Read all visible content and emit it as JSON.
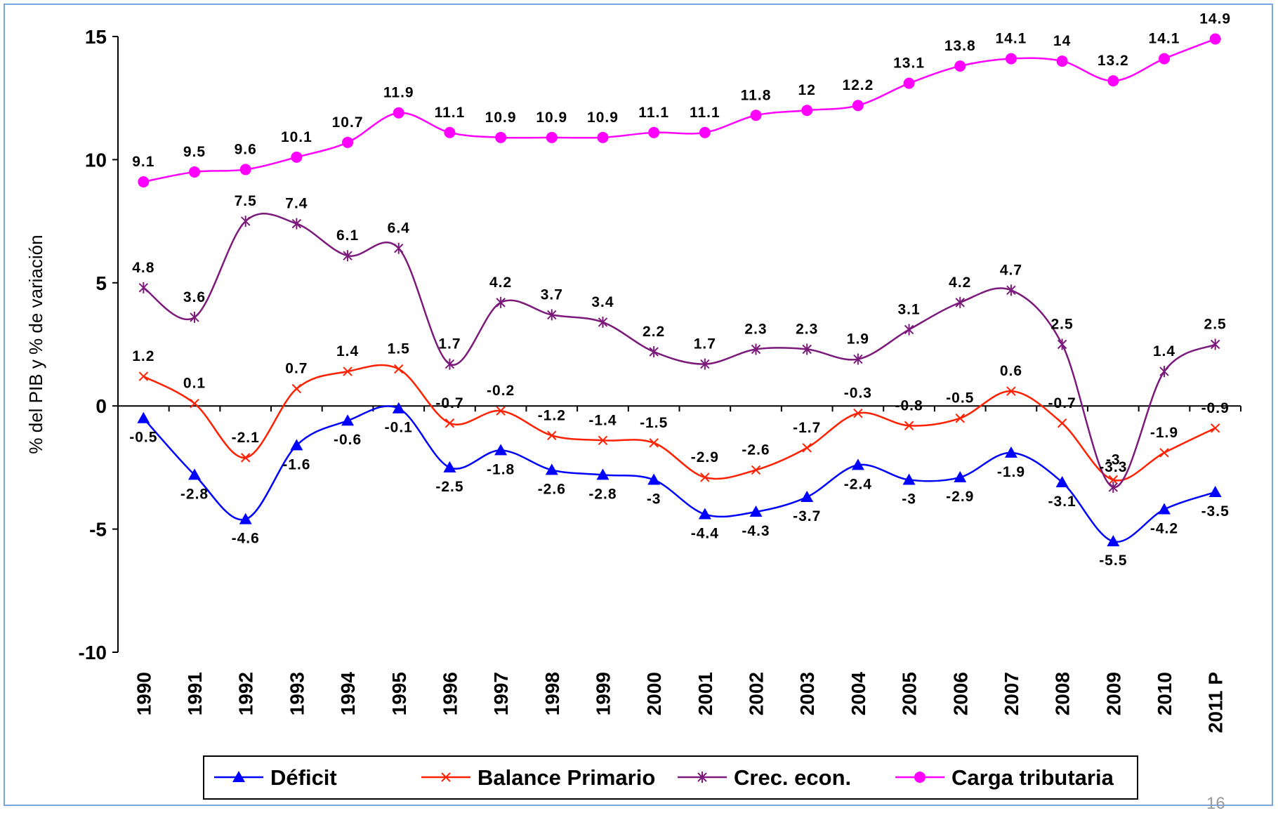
{
  "chart_data": {
    "type": "line",
    "y_label": "% del PIB y % de variación",
    "categories": [
      "1990",
      "1991",
      "1992",
      "1993",
      "1994",
      "1995",
      "1996",
      "1997",
      "1998",
      "1999",
      "2000",
      "2001",
      "2002",
      "2003",
      "2004",
      "2005",
      "2006",
      "2007",
      "2008",
      "2009",
      "2010",
      "2011 P"
    ],
    "ylim": [
      -10,
      15
    ],
    "yticks": [
      -10,
      -5,
      0,
      5,
      10,
      15
    ],
    "legend": "bottom",
    "series": [
      {
        "name": "Déficit",
        "color": "#0000ff",
        "marker": "triangle",
        "values": [
          -0.5,
          -2.8,
          -4.6,
          -1.6,
          -0.6,
          -0.1,
          -2.5,
          -1.8,
          -2.6,
          -2.8,
          -3,
          -4.4,
          -4.3,
          -3.7,
          -2.4,
          -3,
          -2.9,
          -1.9,
          -3.1,
          -5.5,
          -4.2,
          -3.5
        ]
      },
      {
        "name": "Balance Primario",
        "color": "#ff2000",
        "marker": "x",
        "values": [
          1.2,
          0.1,
          -2.1,
          0.7,
          1.4,
          1.5,
          -0.7,
          -0.2,
          -1.2,
          -1.4,
          -1.5,
          -2.9,
          -2.6,
          -1.7,
          -0.3,
          -0.8,
          -0.5,
          0.6,
          -0.7,
          -3,
          -1.9,
          -0.9
        ]
      },
      {
        "name": "Crec. econ.",
        "color": "#7b1a7b",
        "marker": "star",
        "values": [
          4.8,
          3.6,
          7.5,
          7.4,
          6.1,
          6.4,
          1.7,
          4.2,
          3.7,
          3.4,
          2.2,
          1.7,
          2.3,
          2.3,
          1.9,
          3.1,
          4.2,
          4.7,
          2.5,
          -3.3,
          1.4,
          2.5
        ]
      },
      {
        "name": "Carga tributaria",
        "color": "#ff00ff",
        "marker": "circle",
        "values": [
          9.1,
          9.5,
          9.6,
          10.1,
          10.7,
          11.9,
          11.1,
          10.9,
          10.9,
          10.9,
          11.1,
          11.1,
          11.8,
          12,
          12.2,
          13.1,
          13.8,
          14.1,
          14,
          13.2,
          14.1,
          14.9
        ]
      }
    ]
  },
  "page_number": "16"
}
